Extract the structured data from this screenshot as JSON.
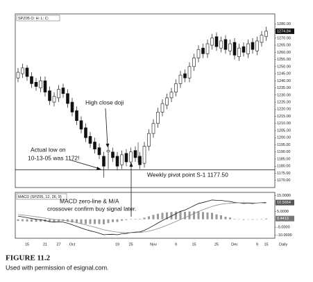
{
  "chart_data": {
    "type": "candlestick",
    "symbol_label": "SPZ05 O: H: L: C:",
    "categories": [
      null,
      null,
      "15",
      null,
      null,
      null,
      "21",
      null,
      null,
      "27",
      null,
      null,
      "Oct",
      null,
      null,
      null,
      null,
      null,
      null,
      null,
      null,
      null,
      "19",
      null,
      null,
      "25",
      null,
      null,
      null,
      null,
      "Nov",
      null,
      null,
      null,
      null,
      "9",
      null,
      null,
      null,
      "15",
      null,
      null,
      null,
      null,
      "25",
      null,
      null,
      null,
      "Dec",
      null,
      null,
      null,
      null,
      "9",
      null,
      "15"
    ],
    "x_axis_label": "Daily",
    "open": [
      1242,
      1245,
      1249,
      1243,
      1239,
      1235,
      1240,
      1233,
      1225,
      1228,
      1235,
      1231,
      1225,
      1219,
      1212,
      1207,
      1201,
      1197,
      1193,
      1187,
      1190,
      1190,
      1187,
      1181,
      1189,
      1183,
      1191,
      1187,
      1182,
      1194,
      1203,
      1210,
      1218,
      1223,
      1228,
      1232,
      1238,
      1245,
      1242,
      1250,
      1256,
      1263,
      1259,
      1265,
      1271,
      1263,
      1269,
      1261,
      1267,
      1257,
      1264,
      1259,
      1267,
      1261,
      1267,
      1271
    ],
    "high": [
      1249,
      1252,
      1251,
      1246,
      1242,
      1243,
      1243,
      1236,
      1232,
      1237,
      1238,
      1234,
      1228,
      1222,
      1215,
      1210,
      1204,
      1200,
      1196,
      1190,
      1196,
      1193,
      1190,
      1191,
      1192,
      1193,
      1194,
      1190,
      1197,
      1206,
      1213,
      1221,
      1227,
      1231,
      1235,
      1241,
      1247,
      1248,
      1253,
      1259,
      1265,
      1266,
      1269,
      1273,
      1274,
      1271,
      1272,
      1269,
      1270,
      1266,
      1267,
      1269,
      1270,
      1271,
      1275,
      1278
    ],
    "low": [
      1239,
      1242,
      1240,
      1235,
      1233,
      1232,
      1229,
      1223,
      1222,
      1225,
      1228,
      1221,
      1215,
      1209,
      1203,
      1197,
      1193,
      1189,
      1185,
      1172,
      1178,
      1183,
      1177,
      1178,
      1180,
      1180,
      1183,
      1178,
      1179,
      1191,
      1200,
      1207,
      1215,
      1220,
      1225,
      1229,
      1235,
      1239,
      1239,
      1247,
      1253,
      1256,
      1256,
      1262,
      1261,
      1260,
      1259,
      1258,
      1255,
      1254,
      1257,
      1256,
      1259,
      1258,
      1264,
      1268
    ],
    "close": [
      1246,
      1249,
      1243,
      1238,
      1236,
      1240,
      1232,
      1226,
      1229,
      1234,
      1231,
      1224,
      1218,
      1212,
      1206,
      1200,
      1196,
      1192,
      1188,
      1180,
      1191,
      1186,
      1180,
      1188,
      1183,
      1190,
      1186,
      1181,
      1194,
      1203,
      1210,
      1218,
      1224,
      1228,
      1232,
      1238,
      1244,
      1242,
      1250,
      1256,
      1262,
      1259,
      1266,
      1270,
      1264,
      1268,
      1262,
      1266,
      1258,
      1263,
      1260,
      1266,
      1262,
      1268,
      1272,
      1274.84
    ],
    "last_price_label": "1274.84",
    "ylim": [
      1165,
      1287
    ],
    "yticks": [
      {
        "value": 1170,
        "label": "1170.00"
      },
      {
        "value": 1175,
        "label": "1175.00"
      },
      {
        "value": 1180,
        "label": "1180.00"
      },
      {
        "value": 1185,
        "label": "1185.00"
      },
      {
        "value": 1190,
        "label": "1190.00"
      },
      {
        "value": 1195,
        "label": "1195.00"
      },
      {
        "value": 1200,
        "label": "1200.00"
      },
      {
        "value": 1205,
        "label": "1205.00"
      },
      {
        "value": 1210,
        "label": "1210.00"
      },
      {
        "value": 1215,
        "label": "1215.00"
      },
      {
        "value": 1220,
        "label": "1220.00"
      },
      {
        "value": 1225,
        "label": "1225.00"
      },
      {
        "value": 1230,
        "label": "1230.00"
      },
      {
        "value": 1235,
        "label": "1235.00"
      },
      {
        "value": 1240,
        "label": "1240.00"
      },
      {
        "value": 1245,
        "label": "1245.00"
      },
      {
        "value": 1250,
        "label": "1250.00"
      },
      {
        "value": 1255,
        "label": "1255.00"
      },
      {
        "value": 1260,
        "label": "1260.00"
      },
      {
        "value": 1265,
        "label": "1265.00"
      },
      {
        "value": 1270,
        "label": "1270.00"
      },
      {
        "value": 1275,
        "label": "1275.00"
      },
      {
        "value": 1280,
        "label": "1280.00"
      }
    ],
    "pivot": {
      "value": 1177.5,
      "label": "Weekly pivot point S-1 1177.50"
    },
    "annotations": [
      "High close doji",
      "Actual low on",
      "10-13-05 was 1172!",
      "MACD zero-line & M/A",
      "crossover confirm buy signal later."
    ],
    "macd": {
      "title": "MACD (SPZ05, 12, 26, 9)",
      "ylim": [
        -12,
        17
      ],
      "yticks": [
        {
          "value": 15,
          "label": "15.0000"
        },
        {
          "value": 5,
          "label": "5.0000"
        },
        {
          "value": -5,
          "label": "-5.0000"
        },
        {
          "value": -10,
          "label": "-10.0000"
        }
      ],
      "series": [
        {
          "name": "MACD",
          "color": "#111111",
          "last_label": "10.5654",
          "values": [
            2,
            1.5,
            1,
            0.5,
            0,
            -0.3,
            -0.8,
            -1.5,
            -1.8,
            -1.6,
            -1.8,
            -2.5,
            -3.5,
            -4.5,
            -5.5,
            -6.5,
            -7.3,
            -8,
            -8.8,
            -9.8,
            -9.6,
            -9.5,
            -9.8,
            -9.2,
            -9,
            -8.4,
            -8.1,
            -8,
            -7,
            -5.6,
            -4,
            -2.4,
            -0.8,
            0.6,
            2,
            3.5,
            5,
            5.8,
            7.2,
            8.6,
            10,
            10.6,
            11.4,
            12.2,
            12,
            12,
            11.5,
            11.3,
            10.6,
            10.4,
            10,
            10.2,
            10,
            10.3,
            10.5,
            10.5654
          ]
        },
        {
          "name": "Signal",
          "color": "#888888",
          "values": [
            3,
            2.7,
            2.4,
            2,
            1.6,
            1.2,
            0.8,
            0.3,
            -0.1,
            -0.4,
            -0.7,
            -1,
            -1.5,
            -2.1,
            -2.8,
            -3.5,
            -4.3,
            -5,
            -5.8,
            -6.6,
            -7.2,
            -7.7,
            -8.1,
            -8.3,
            -8.5,
            -8.5,
            -8.4,
            -8.3,
            -8,
            -7.5,
            -6.8,
            -5.9,
            -4.9,
            -3.8,
            -2.6,
            -1.4,
            -0.1,
            1.1,
            2.3,
            3.6,
            4.9,
            6,
            7.1,
            8.1,
            8.9,
            9.5,
            9.9,
            10.2,
            10.3,
            10.4,
            10.4,
            10.4,
            10.3,
            10.3,
            10.4,
            10.1241
          ]
        },
        {
          "name": "Histogram",
          "color": "#9a9a9a",
          "last_label": "0.4413",
          "values": [
            -1,
            -1.2,
            -1.4,
            -1.5,
            -1.6,
            -1.5,
            -1.6,
            -1.8,
            -1.7,
            -1.2,
            -1.1,
            -1.5,
            -2,
            -2.4,
            -2.7,
            -3,
            -3,
            -3,
            -3,
            -3.2,
            -2.4,
            -1.8,
            -1.7,
            -0.9,
            -0.5,
            0.1,
            0.3,
            0.3,
            1,
            1.9,
            2.8,
            3.5,
            4.1,
            4.4,
            4.6,
            4.9,
            5.1,
            4.7,
            4.9,
            5,
            5.1,
            4.6,
            4.3,
            4.1,
            3.1,
            2.5,
            1.6,
            1.1,
            0.3,
            0,
            -0.4,
            -0.2,
            -0.3,
            0,
            0.1,
            0.4413
          ]
        }
      ]
    },
    "caption": {
      "figure": "FIGURE 11.2",
      "credit": "Used with permission of esignal.com."
    }
  }
}
